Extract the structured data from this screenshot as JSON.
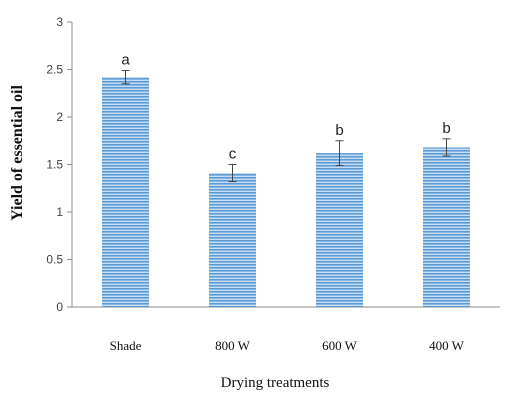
{
  "chart_data": {
    "type": "bar",
    "categories": [
      "Shade",
      "800 W",
      "600 W",
      "400 W"
    ],
    "values": [
      2.42,
      1.41,
      1.62,
      1.68
    ],
    "errors": [
      0.07,
      0.09,
      0.13,
      0.09
    ],
    "significance_letters": [
      "a",
      "c",
      "b",
      "b"
    ],
    "xlabel": "Drying treatments",
    "ylabel": "Yield of essential oil",
    "ylim": [
      0,
      3
    ],
    "yticks": [
      "0",
      "0.5",
      "1",
      "1.5",
      "2",
      "2.5",
      "3"
    ],
    "grid": false,
    "bar_color": "#5b9bd5",
    "bar_stripe_color": "#c9ddf2"
  }
}
